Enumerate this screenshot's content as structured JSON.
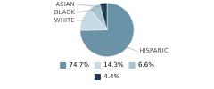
{
  "chart_data": {
    "type": "pie",
    "categories": [
      "HISPANIC",
      "WHITE",
      "BLACK",
      "ASIAN"
    ],
    "values": [
      74.7,
      14.3,
      6.6,
      4.4
    ],
    "value_labels": [
      "74.7%",
      "14.3%",
      "6.6%",
      "4.4%"
    ],
    "colors": [
      "#6a93a8",
      "#c5dbe6",
      "#a8c5d2",
      "#1e3a52"
    ],
    "legend": "bottom"
  }
}
